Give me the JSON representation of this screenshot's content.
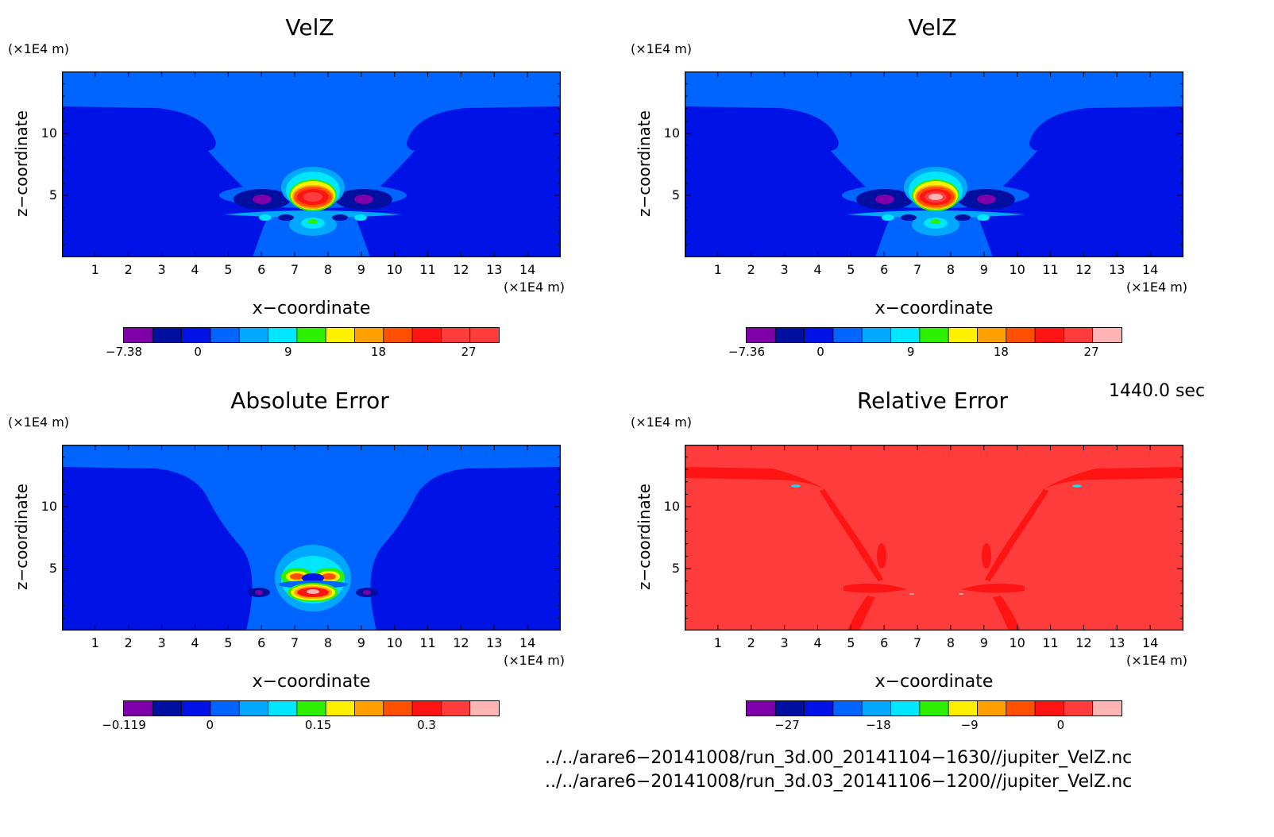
{
  "chart_data": [
    {
      "type": "heatmap",
      "title": "VelZ",
      "xlabel": "x−coordinate",
      "ylabel": "z−coordinate",
      "x_unit": "(×1E4 m)",
      "y_unit": "(×1E4 m)",
      "xlim": [
        0,
        15
      ],
      "ylim": [
        0,
        15
      ],
      "x_ticks": [
        1,
        2,
        3,
        4,
        5,
        6,
        7,
        8,
        9,
        10,
        11,
        12,
        13,
        14
      ],
      "y_ticks": [
        5,
        10
      ],
      "colorbar": {
        "tick_values": [
          -7.38,
          0,
          9,
          18,
          27
        ],
        "tick_labels": [
          "−7.38",
          "0",
          "9",
          "18",
          "27"
        ],
        "min": -7.38,
        "max": 30
      }
    },
    {
      "type": "heatmap",
      "title": "VelZ",
      "xlabel": "x−coordinate",
      "ylabel": "z−coordinate",
      "x_unit": "(×1E4 m)",
      "y_unit": "(×1E4 m)",
      "xlim": [
        0,
        15
      ],
      "ylim": [
        0,
        15
      ],
      "x_ticks": [
        1,
        2,
        3,
        4,
        5,
        6,
        7,
        8,
        9,
        10,
        11,
        12,
        13,
        14
      ],
      "y_ticks": [
        5,
        10
      ],
      "colorbar": {
        "tick_values": [
          -7.36,
          0,
          9,
          18,
          27
        ],
        "tick_labels": [
          "−7.36",
          "0",
          "9",
          "18",
          "27"
        ],
        "min": -7.36,
        "max": 30
      }
    },
    {
      "type": "heatmap",
      "title": "Absolute Error",
      "xlabel": "x−coordinate",
      "ylabel": "z−coordinate",
      "x_unit": "(×1E4 m)",
      "y_unit": "(×1E4 m)",
      "xlim": [
        0,
        15
      ],
      "ylim": [
        0,
        15
      ],
      "x_ticks": [
        1,
        2,
        3,
        4,
        5,
        6,
        7,
        8,
        9,
        10,
        11,
        12,
        13,
        14
      ],
      "y_ticks": [
        5,
        10
      ],
      "colorbar": {
        "tick_values": [
          -0.119,
          0,
          0.15,
          0.3
        ],
        "tick_labels": [
          "−0.119",
          "0",
          "0.15",
          "0.3"
        ],
        "min": -0.119,
        "max": 0.4
      }
    },
    {
      "type": "heatmap",
      "title": "Relative Error",
      "xlabel": "x−coordinate",
      "ylabel": "z−coordinate",
      "x_unit": "(×1E4 m)",
      "y_unit": "(×1E4 m)",
      "xlim": [
        0,
        15
      ],
      "ylim": [
        0,
        15
      ],
      "x_ticks": [
        1,
        2,
        3,
        4,
        5,
        6,
        7,
        8,
        9,
        10,
        11,
        12,
        13,
        14
      ],
      "y_ticks": [
        5,
        10
      ],
      "colorbar": {
        "tick_values": [
          -27,
          -18,
          -9,
          0
        ],
        "tick_labels": [
          "−27",
          "−18",
          "−9",
          "0"
        ],
        "min": -31,
        "max": 6
      }
    }
  ],
  "colormap": [
    "#7f00a8",
    "#000fa0",
    "#0013e6",
    "#0064ff",
    "#00a8ff",
    "#00e6ff",
    "#2cf000",
    "#fff000",
    "#ffa000",
    "#ff5000",
    "#ff1414",
    "#ff3c3c",
    "#ffb4b4"
  ],
  "time_label": "1440.0 sec",
  "file_paths": [
    "../../arare6−20141008/run_3d.00_20141104−1630//jupiter_VelZ.nc",
    "../../arare6−20141008/run_3d.03_20141106−1200//jupiter_VelZ.nc"
  ]
}
